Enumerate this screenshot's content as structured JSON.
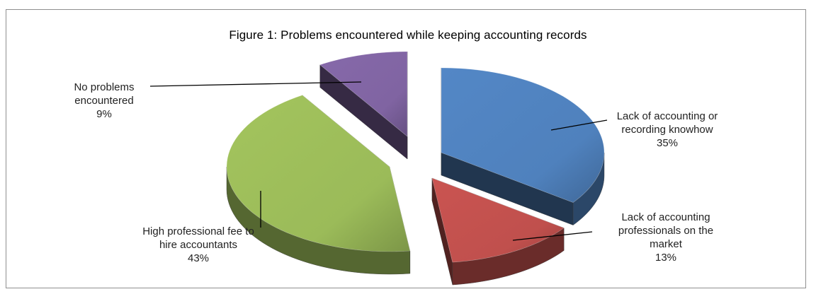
{
  "chart_data": {
    "type": "pie",
    "title": "Figure 1: Problems encountered while keeping accounting records",
    "slices": [
      {
        "label_lines": [
          "Lack of accounting or",
          "recording knowhow"
        ],
        "value": 35,
        "pct": "35%",
        "color": "#4f81bd"
      },
      {
        "label_lines": [
          "Lack of accounting",
          "professionals on the",
          "market"
        ],
        "value": 13,
        "pct": "13%",
        "color": "#c0504d"
      },
      {
        "label_lines": [
          "High professional fee  to",
          "hire accountants"
        ],
        "value": 43,
        "pct": "43%",
        "color": "#9bbb59"
      },
      {
        "label_lines": [
          "No problems",
          "encountered"
        ],
        "value": 9,
        "pct": "9%",
        "color": "#8064a2"
      }
    ],
    "exploded": true,
    "three_d": true
  }
}
